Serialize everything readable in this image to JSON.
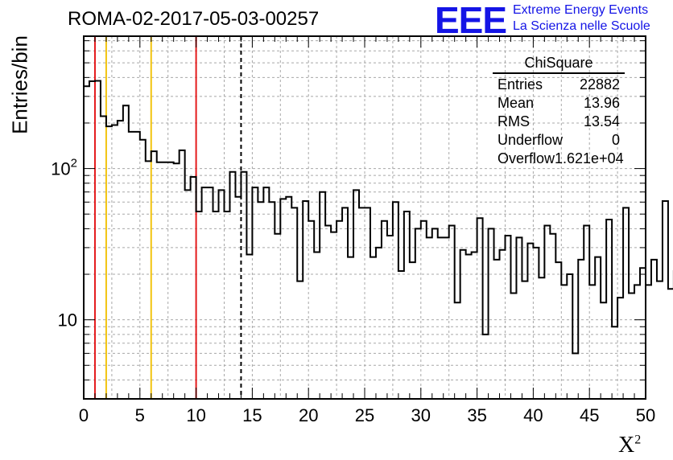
{
  "title": "ROMA-02-2017-05-03-00257",
  "logo": {
    "mark": "EEE",
    "line1": "Extreme Energy Events",
    "line2": "La Scienza nelle Scuole",
    "color": "#1414e6"
  },
  "stats": {
    "title": "ChiSquare",
    "rows": [
      {
        "label": "Entries",
        "value": "22882"
      },
      {
        "label": "Mean",
        "value": "13.96"
      },
      {
        "label": "RMS",
        "value": "13.54"
      },
      {
        "label": "Underflow",
        "value": "0"
      },
      {
        "label": "Overflow",
        "value": "1.621e+04"
      }
    ]
  },
  "chart_data": {
    "type": "bar",
    "histogram": "step",
    "ylabel": "Entries/bin",
    "xlabel": "X",
    "xlabel_superscript": "2",
    "xlim": [
      0,
      50
    ],
    "ylim": [
      3,
      750
    ],
    "yscale": "log",
    "grid": true,
    "bin_width": 0.5,
    "x_ticks": [
      0,
      5,
      10,
      15,
      20,
      25,
      30,
      35,
      40,
      45,
      50
    ],
    "y_tick_labels": [
      {
        "value": 10,
        "base": "10",
        "exp": ""
      },
      {
        "value": 100,
        "base": "10",
        "exp": "2"
      }
    ],
    "vertical_lines": [
      {
        "x": 1,
        "color": "#e41a1c",
        "style": "solid"
      },
      {
        "x": 2,
        "color": "#f2c40f",
        "style": "solid"
      },
      {
        "x": 6,
        "color": "#f2c40f",
        "style": "solid"
      },
      {
        "x": 10,
        "color": "#e41a1c",
        "style": "solid"
      },
      {
        "x": 14,
        "color": "#000000",
        "style": "dashed"
      }
    ],
    "values": [
      350,
      378,
      380,
      222,
      190,
      194,
      207,
      261,
      175,
      175,
      155,
      112,
      130,
      110,
      110,
      110,
      108,
      132,
      72,
      88,
      52,
      75,
      75,
      52,
      72,
      52,
      95,
      65,
      95,
      27,
      75,
      60,
      75,
      60,
      37,
      63,
      65,
      55,
      18,
      61,
      45,
      28,
      70,
      42,
      38,
      45,
      55,
      26,
      72,
      55,
      55,
      26,
      30,
      45,
      36,
      60,
      21,
      52,
      24,
      40,
      45,
      35,
      40,
      35,
      35,
      42,
      13,
      29,
      27,
      28,
      47,
      8,
      40,
      25,
      29,
      36,
      15,
      35,
      18,
      32,
      30,
      19,
      42,
      37,
      24,
      17,
      20,
      6,
      25,
      42,
      17,
      26,
      13,
      46,
      9,
      14,
      55,
      15,
      17,
      22,
      17,
      25,
      18,
      61,
      16,
      21,
      21,
      33,
      18,
      19,
      27,
      8,
      55,
      21,
      18,
      28,
      27,
      28,
      28,
      22,
      20,
      25,
      22,
      17,
      22,
      33,
      28,
      29,
      23,
      13,
      22,
      17,
      20,
      31,
      21,
      28,
      19,
      35,
      34,
      32,
      22,
      23,
      24,
      21,
      21,
      8,
      8,
      12,
      13,
      12,
      42
    ]
  }
}
